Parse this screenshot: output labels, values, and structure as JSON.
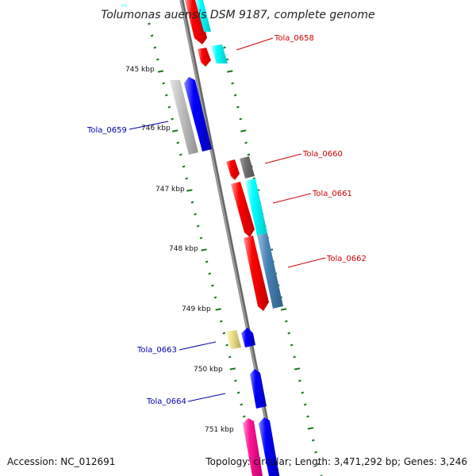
{
  "title": "Tolumonas auensis DSM 9187, complete genome",
  "footer": {
    "accession": "Accession: NC_012691",
    "summary": "Topology: circular; Length: 3,471,292 bp; Genes: 3,246"
  },
  "colors": {
    "backbone": "#8a8a8a",
    "ticks": "#1a7a1a",
    "label_forward": "#cc0000",
    "label_reverse": "#0000aa"
  },
  "ruler": {
    "ticks": [
      "745 kbp",
      "746 kbp",
      "747 kbp",
      "748 kbp",
      "749 kbp",
      "750 kbp",
      "751 kbp"
    ]
  },
  "labels": [
    {
      "text": "Tola_0658",
      "color": "#cc0000"
    },
    {
      "text": "Tola_0659",
      "color": "#0000aa"
    },
    {
      "text": "Tola_0660",
      "color": "#cc0000"
    },
    {
      "text": "Tola_0661",
      "color": "#cc0000"
    },
    {
      "text": "Tola_0662",
      "color": "#cc0000"
    },
    {
      "text": "Tola_0663",
      "color": "#0000aa"
    },
    {
      "text": "Tola_0664",
      "color": "#0000aa"
    }
  ]
}
